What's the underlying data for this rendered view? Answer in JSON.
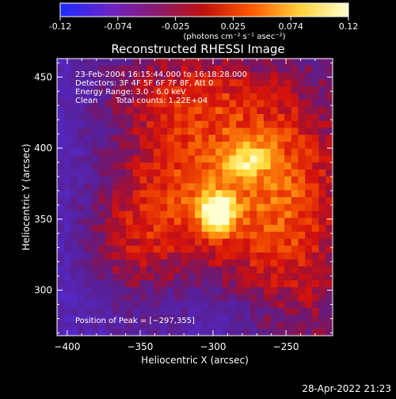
{
  "colorbar": {
    "ticks": [
      "-0.12",
      "-0.074",
      "-0.025",
      "0.025",
      "0.074",
      "0.12"
    ],
    "unit_label": "(photons cm⁻² s⁻¹ asec⁻²)",
    "colors": [
      "#1a2bff",
      "#6a24c8",
      "#8a1a70",
      "#c0110c",
      "#ff5a00",
      "#ffd23a",
      "#ffffd0"
    ]
  },
  "chart_data": {
    "type": "heatmap",
    "title": "Reconstructed RHESSI Image",
    "xlabel": "Heliocentric X (arcsec)",
    "ylabel": "Heliocentric Y (arcsec)",
    "xlim": [
      -407,
      -218
    ],
    "ylim": [
      268,
      463
    ],
    "x_ticks": [
      -400,
      -350,
      -300,
      -250
    ],
    "y_ticks": [
      300,
      350,
      400,
      450
    ],
    "x_tick_labels": [
      "−400",
      "−350",
      "−300",
      "−250"
    ],
    "y_tick_labels": [
      "300",
      "350",
      "400",
      "450"
    ],
    "peak": [
      -297,
      355
    ],
    "secondary_peak": [
      -277,
      392
    ],
    "value_range": [
      -0.12,
      0.12
    ]
  },
  "annotations": {
    "time_range": "23-Feb-2004 16:15:44.000 to 16:18:28.000",
    "detectors": "Detectors: 3F 4F 5F 6F 7F 8F, Att 0",
    "energy": "Energy Range: 3.0 - 6.0 keV",
    "clean": "Clean",
    "total_counts": "Total counts: 1.22E+04",
    "peak_position": "Position of Peak = [−297,355]"
  },
  "footer": {
    "date": "28-Apr-2022 21:23"
  }
}
